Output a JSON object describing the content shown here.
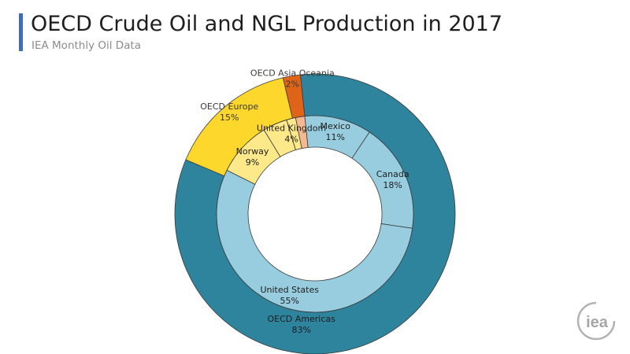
{
  "header": {
    "title": "OECD Crude Oil and NGL Production in 2017",
    "subtitle": "IEA Monthly Oil Data"
  },
  "logo": {
    "text": "iea",
    "color": "#a6a6a6"
  },
  "chart_data": {
    "type": "pie",
    "subtype": "nested donut",
    "title": "OECD Crude Oil and NGL Production in 2017",
    "subtitle": "IEA Monthly Oil Data",
    "unit": "%",
    "outer_ring": [
      {
        "label": "OECD Americas",
        "value": 83,
        "label_text": "83%",
        "color": "#2e839d",
        "text_color": "#1e1e1e"
      },
      {
        "label": "OECD Europe",
        "value": 15,
        "label_text": "15%",
        "color": "#fdd72b",
        "text_color": "#3a3a3a"
      },
      {
        "label": "OECD Asia Oceania",
        "value": 2,
        "label_text": "2%",
        "color": "#e06418",
        "text_color": "#3a3a3a"
      }
    ],
    "inner_ring": [
      {
        "label": "Mexico",
        "value": 11,
        "label_text": "11%",
        "parent": "OECD Americas",
        "color": "#98cde0"
      },
      {
        "label": "Canada",
        "value": 18,
        "label_text": "18%",
        "parent": "OECD Americas",
        "color": "#98cde0"
      },
      {
        "label": "United States",
        "value": 55,
        "label_text": "55%",
        "parent": "OECD Americas",
        "color": "#98cde0"
      },
      {
        "label": "Norway",
        "value": 9,
        "label_text": "9%",
        "parent": "OECD Europe",
        "color": "#fde98a"
      },
      {
        "label": "United Kingdom",
        "value": 4,
        "label_text": "4%",
        "parent": "OECD Europe",
        "color": "#fde98a"
      },
      {
        "label": "",
        "value": 1.5,
        "parent": "OECD Europe",
        "color": "#fde98a"
      },
      {
        "label": "",
        "value": 1.5,
        "parent": "OECD Asia Oceania",
        "color": "#f4b993"
      }
    ]
  }
}
